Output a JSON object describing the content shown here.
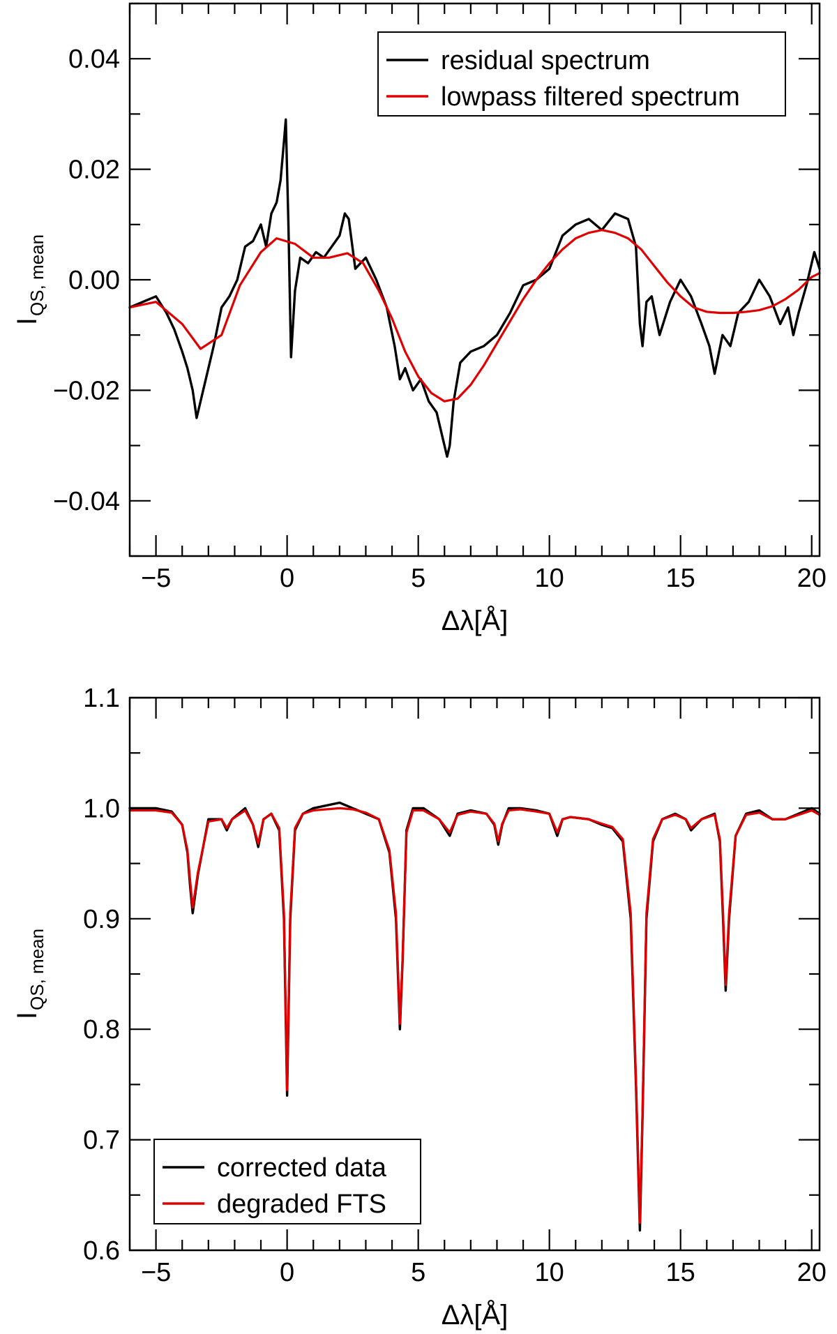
{
  "chart_data": [
    {
      "type": "line",
      "title": "",
      "xlabel": "Δλ[Å]",
      "ylabel_main": "I",
      "ylabel_sub": "QS, mean",
      "xlim": [
        -6,
        20.3
      ],
      "ylim": [
        -0.05,
        0.05
      ],
      "x_ticks": [
        -5,
        0,
        5,
        10,
        15,
        20
      ],
      "y_ticks": [
        -0.04,
        -0.02,
        0.0,
        0.02,
        0.04
      ],
      "x_tick_labels": [
        "−5",
        "0",
        "5",
        "10",
        "15",
        "20"
      ],
      "y_tick_labels": [
        "−0.04",
        "−0.02",
        "0.00",
        "0.02",
        "0.04"
      ],
      "legend_position": "top-right",
      "series": [
        {
          "name": "residual spectrum",
          "color": "#000000",
          "x": [
            -6.0,
            -5.5,
            -5.0,
            -4.6,
            -4.3,
            -4.0,
            -3.8,
            -3.6,
            -3.45,
            -3.3,
            -3.1,
            -2.8,
            -2.5,
            -2.2,
            -1.9,
            -1.6,
            -1.3,
            -1.0,
            -0.8,
            -0.6,
            -0.4,
            -0.25,
            -0.12,
            -0.05,
            0.05,
            0.15,
            0.3,
            0.5,
            0.8,
            1.1,
            1.4,
            1.7,
            2.0,
            2.2,
            2.35,
            2.6,
            3.0,
            3.4,
            3.8,
            4.1,
            4.3,
            4.5,
            4.8,
            5.1,
            5.4,
            5.7,
            5.95,
            6.1,
            6.2,
            6.35,
            6.6,
            7.0,
            7.5,
            8.0,
            8.5,
            9.0,
            9.5,
            10.0,
            10.5,
            11.0,
            11.5,
            12.0,
            12.5,
            13.0,
            13.3,
            13.45,
            13.55,
            13.7,
            13.9,
            14.2,
            14.6,
            15.0,
            15.4,
            15.8,
            16.1,
            16.3,
            16.6,
            16.9,
            17.2,
            17.6,
            18.0,
            18.4,
            18.8,
            19.1,
            19.3,
            19.5,
            19.8,
            20.1,
            20.3
          ],
          "y": [
            -0.005,
            -0.004,
            -0.003,
            -0.006,
            -0.009,
            -0.013,
            -0.016,
            -0.02,
            -0.025,
            -0.022,
            -0.018,
            -0.012,
            -0.005,
            -0.003,
            0.0,
            0.006,
            0.007,
            0.01,
            0.006,
            0.012,
            0.014,
            0.018,
            0.025,
            0.029,
            0.01,
            -0.014,
            -0.002,
            0.004,
            0.003,
            0.005,
            0.004,
            0.006,
            0.008,
            0.012,
            0.011,
            0.002,
            0.004,
            0.0,
            -0.005,
            -0.012,
            -0.018,
            -0.016,
            -0.02,
            -0.018,
            -0.022,
            -0.024,
            -0.029,
            -0.032,
            -0.03,
            -0.022,
            -0.015,
            -0.013,
            -0.012,
            -0.01,
            -0.006,
            -0.001,
            0.0,
            0.002,
            0.008,
            0.01,
            0.011,
            0.009,
            0.012,
            0.011,
            0.006,
            -0.008,
            -0.012,
            -0.004,
            -0.003,
            -0.01,
            -0.004,
            0.0,
            -0.003,
            -0.008,
            -0.012,
            -0.017,
            -0.01,
            -0.012,
            -0.006,
            -0.004,
            0.0,
            -0.003,
            -0.008,
            -0.005,
            -0.01,
            -0.006,
            -0.001,
            0.005,
            0.002
          ]
        },
        {
          "name": "lowpass filtered spectrum",
          "color": "#e00000",
          "x": [
            -6.0,
            -5.0,
            -4.0,
            -3.3,
            -2.5,
            -1.8,
            -1.0,
            -0.4,
            0.3,
            1.0,
            1.6,
            2.3,
            2.9,
            3.5,
            4.0,
            4.5,
            5.0,
            5.5,
            6.0,
            6.5,
            7.0,
            7.5,
            8.0,
            8.5,
            9.0,
            9.5,
            10.0,
            10.5,
            11.0,
            11.5,
            12.0,
            12.5,
            13.0,
            13.5,
            14.0,
            14.5,
            15.0,
            15.5,
            16.0,
            16.5,
            17.0,
            17.5,
            18.0,
            18.5,
            19.0,
            19.5,
            20.0,
            20.3
          ],
          "y": [
            -0.005,
            -0.004,
            -0.008,
            -0.0125,
            -0.01,
            -0.001,
            0.005,
            0.0075,
            0.0065,
            0.004,
            0.004,
            0.0048,
            0.003,
            -0.002,
            -0.007,
            -0.013,
            -0.0175,
            -0.0205,
            -0.022,
            -0.0215,
            -0.019,
            -0.0155,
            -0.0115,
            -0.0075,
            -0.0035,
            0.0,
            0.003,
            0.0055,
            0.0075,
            0.0085,
            0.009,
            0.0085,
            0.0075,
            0.0055,
            0.0025,
            -0.0005,
            -0.003,
            -0.005,
            -0.0058,
            -0.006,
            -0.006,
            -0.0058,
            -0.0055,
            -0.0048,
            -0.0035,
            -0.0018,
            0.0005,
            0.0012
          ]
        }
      ]
    },
    {
      "type": "line",
      "title": "",
      "xlabel": "Δλ[Å]",
      "ylabel_main": "I",
      "ylabel_sub": "QS, mean",
      "xlim": [
        -6,
        20.3
      ],
      "ylim": [
        0.6,
        1.1
      ],
      "x_ticks": [
        -5,
        0,
        5,
        10,
        15,
        20
      ],
      "y_ticks": [
        0.6,
        0.7,
        0.8,
        0.9,
        1.0,
        1.1
      ],
      "x_tick_labels": [
        "−5",
        "0",
        "5",
        "10",
        "15",
        "20"
      ],
      "y_tick_labels": [
        "0.6",
        "0.7",
        "0.8",
        "0.9",
        "1.0",
        "1.1"
      ],
      "legend_position": "bottom-left",
      "series": [
        {
          "name": "corrected data",
          "color": "#000000",
          "x": [
            -6.0,
            -5.0,
            -4.4,
            -4.0,
            -3.8,
            -3.7,
            -3.6,
            -3.4,
            -3.0,
            -2.5,
            -2.3,
            -2.1,
            -1.6,
            -1.3,
            -1.1,
            -0.9,
            -0.6,
            -0.3,
            -0.12,
            0.0,
            0.12,
            0.3,
            0.6,
            1.0,
            2.0,
            2.5,
            3.0,
            3.5,
            3.9,
            4.15,
            4.3,
            4.4,
            4.55,
            4.8,
            5.2,
            5.8,
            6.2,
            6.5,
            7.0,
            7.6,
            7.9,
            8.05,
            8.2,
            8.45,
            8.9,
            9.5,
            10.0,
            10.3,
            10.5,
            10.8,
            11.5,
            12.0,
            12.4,
            12.8,
            13.1,
            13.3,
            13.45,
            13.55,
            13.7,
            13.95,
            14.3,
            14.8,
            15.2,
            15.4,
            15.8,
            16.3,
            16.5,
            16.62,
            16.72,
            16.85,
            17.1,
            17.5,
            18.0,
            18.5,
            19.0,
            19.5,
            20.0,
            20.3
          ],
          "y": [
            1.0,
            1.0,
            0.997,
            0.985,
            0.96,
            0.93,
            0.905,
            0.94,
            0.99,
            0.99,
            0.98,
            0.99,
            1.0,
            0.985,
            0.965,
            0.99,
            0.995,
            0.98,
            0.9,
            0.74,
            0.9,
            0.98,
            0.995,
            1.0,
            1.005,
            1.0,
            0.995,
            0.99,
            0.96,
            0.9,
            0.8,
            0.86,
            0.98,
            1.0,
            1.0,
            0.99,
            0.975,
            0.995,
            0.998,
            0.995,
            0.985,
            0.967,
            0.985,
            1.0,
            1.0,
            0.998,
            0.995,
            0.975,
            0.99,
            0.992,
            0.99,
            0.985,
            0.982,
            0.97,
            0.9,
            0.75,
            0.618,
            0.72,
            0.9,
            0.97,
            0.99,
            0.995,
            0.99,
            0.98,
            0.99,
            0.995,
            0.97,
            0.9,
            0.835,
            0.9,
            0.975,
            0.995,
            0.998,
            0.99,
            0.99,
            0.995,
            1.0,
            0.995
          ]
        },
        {
          "name": "degraded FTS",
          "color": "#e00000",
          "x": [
            -6.0,
            -5.0,
            -4.4,
            -4.0,
            -3.8,
            -3.7,
            -3.6,
            -3.4,
            -3.0,
            -2.5,
            -2.3,
            -2.1,
            -1.6,
            -1.3,
            -1.1,
            -0.9,
            -0.6,
            -0.3,
            -0.12,
            0.0,
            0.12,
            0.3,
            0.6,
            1.0,
            2.0,
            2.5,
            3.0,
            3.5,
            3.9,
            4.15,
            4.3,
            4.4,
            4.55,
            4.8,
            5.2,
            5.8,
            6.2,
            6.5,
            7.0,
            7.6,
            7.9,
            8.05,
            8.2,
            8.45,
            8.9,
            9.5,
            10.0,
            10.3,
            10.5,
            10.8,
            11.5,
            12.0,
            12.4,
            12.8,
            13.1,
            13.3,
            13.45,
            13.55,
            13.7,
            13.95,
            14.3,
            14.8,
            15.2,
            15.4,
            15.8,
            16.3,
            16.5,
            16.62,
            16.72,
            16.85,
            17.1,
            17.5,
            18.0,
            18.5,
            19.0,
            19.5,
            20.0,
            20.3
          ],
          "y": [
            0.998,
            0.998,
            0.996,
            0.985,
            0.962,
            0.935,
            0.91,
            0.942,
            0.988,
            0.99,
            0.982,
            0.99,
            0.998,
            0.985,
            0.968,
            0.99,
            0.995,
            0.982,
            0.905,
            0.745,
            0.905,
            0.982,
            0.995,
            0.998,
            1.0,
            0.999,
            0.996,
            0.99,
            0.962,
            0.905,
            0.805,
            0.862,
            0.978,
            0.998,
            0.998,
            0.99,
            0.978,
            0.994,
            0.997,
            0.995,
            0.986,
            0.97,
            0.986,
            0.998,
            0.999,
            0.997,
            0.995,
            0.978,
            0.99,
            0.992,
            0.99,
            0.986,
            0.983,
            0.972,
            0.905,
            0.755,
            0.625,
            0.725,
            0.905,
            0.972,
            0.99,
            0.994,
            0.99,
            0.982,
            0.99,
            0.994,
            0.972,
            0.905,
            0.84,
            0.905,
            0.975,
            0.994,
            0.996,
            0.99,
            0.99,
            0.994,
            0.998,
            0.994
          ]
        }
      ]
    }
  ]
}
